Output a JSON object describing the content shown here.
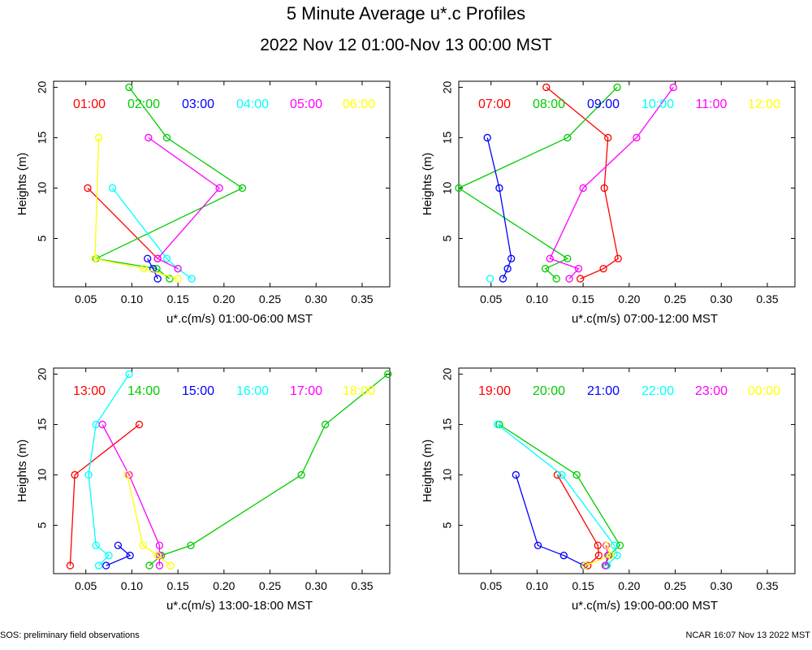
{
  "title": "5 Minute Average u*.c Profiles",
  "subtitle": "2022 Nov 12 01:00-Nov 13 00:00 MST",
  "footer_left": "SOS: preliminary field observations",
  "footer_right": "NCAR 16:07 Nov 13 2022 MST",
  "colors": [
    "#ff0000",
    "#00cc00",
    "#0000ff",
    "#00ffff",
    "#ff00ff",
    "#ffff00"
  ],
  "chart_data": [
    {
      "type": "line",
      "xlabel": "u*.c(m/s) 01:00-06:00 MST",
      "ylabel": "Heights (m)",
      "xlim": [
        0.015,
        0.38
      ],
      "ylim": [
        0.2,
        20.6
      ],
      "xticks": [
        "0.05",
        "0.10",
        "0.15",
        "0.20",
        "0.25",
        "0.30",
        "0.35"
      ],
      "yticks": [
        "5",
        "10",
        "15",
        "20"
      ],
      "series": [
        {
          "name": "01:00",
          "points": [
            [
              0.052,
              10
            ],
            [
              0.128,
              3
            ]
          ]
        },
        {
          "name": "02:00",
          "points": [
            [
              0.097,
              20
            ],
            [
              0.138,
              15
            ],
            [
              0.22,
              10
            ],
            [
              0.061,
              3
            ],
            [
              0.127,
              2
            ],
            [
              0.141,
              1
            ]
          ]
        },
        {
          "name": "03:00",
          "points": [
            [
              0.117,
              3
            ],
            [
              0.123,
              2
            ],
            [
              0.128,
              1
            ]
          ]
        },
        {
          "name": "04:00",
          "points": [
            [
              0.079,
              10
            ],
            [
              0.138,
              3
            ],
            [
              0.15,
              2
            ],
            [
              0.165,
              1
            ]
          ]
        },
        {
          "name": "05:00",
          "points": [
            [
              0.118,
              15
            ],
            [
              0.195,
              10
            ],
            [
              0.128,
              3
            ],
            [
              0.15,
              2
            ]
          ]
        },
        {
          "name": "06:00",
          "points": [
            [
              0.064,
              15
            ],
            [
              0.06,
              3
            ],
            [
              0.113,
              2
            ],
            [
              0.15,
              1
            ]
          ]
        }
      ]
    },
    {
      "type": "line",
      "xlabel": "u*.c(m/s) 07:00-12:00 MST",
      "ylabel": "Heights (m)",
      "xlim": [
        0.015,
        0.38
      ],
      "ylim": [
        0.2,
        20.6
      ],
      "xticks": [
        "0.05",
        "0.10",
        "0.15",
        "0.20",
        "0.25",
        "0.30",
        "0.35"
      ],
      "yticks": [
        "5",
        "10",
        "15",
        "20"
      ],
      "series": [
        {
          "name": "07:00",
          "points": [
            [
              0.11,
              20
            ],
            [
              0.177,
              15
            ],
            [
              0.173,
              10
            ],
            [
              0.188,
              3
            ],
            [
              0.172,
              2
            ],
            [
              0.147,
              1
            ]
          ]
        },
        {
          "name": "08:00",
          "points": [
            [
              0.187,
              20
            ],
            [
              0.133,
              15
            ],
            [
              0.015,
              10
            ],
            [
              0.133,
              3
            ],
            [
              0.109,
              2
            ],
            [
              0.121,
              1
            ]
          ]
        },
        {
          "name": "09:00",
          "points": [
            [
              0.046,
              15
            ],
            [
              0.059,
              10
            ],
            [
              0.072,
              3
            ],
            [
              0.068,
              2
            ],
            [
              0.063,
              1
            ]
          ]
        },
        {
          "name": "10:00",
          "points": [
            [
              0.049,
              1
            ]
          ]
        },
        {
          "name": "11:00",
          "points": [
            [
              0.248,
              20
            ],
            [
              0.208,
              15
            ],
            [
              0.15,
              10
            ],
            [
              0.114,
              3
            ],
            [
              0.145,
              2
            ],
            [
              0.135,
              1
            ]
          ]
        },
        {
          "name": "12:00",
          "points": []
        }
      ]
    },
    {
      "type": "line",
      "xlabel": "u*.c(m/s) 13:00-18:00 MST",
      "ylabel": "Heights (m)",
      "xlim": [
        0.015,
        0.38
      ],
      "ylim": [
        0.2,
        20.6
      ],
      "xticks": [
        "0.05",
        "0.10",
        "0.15",
        "0.20",
        "0.25",
        "0.30",
        "0.35"
      ],
      "yticks": [
        "5",
        "10",
        "15",
        "20"
      ],
      "series": [
        {
          "name": "13:00",
          "points": [
            [
              0.108,
              15
            ],
            [
              0.038,
              10
            ],
            [
              0.033,
              1
            ]
          ]
        },
        {
          "name": "14:00",
          "points": [
            [
              0.378,
              20
            ],
            [
              0.31,
              15
            ],
            [
              0.284,
              10
            ],
            [
              0.164,
              3
            ],
            [
              0.132,
              2
            ],
            [
              0.119,
              1
            ]
          ]
        },
        {
          "name": "15:00",
          "points": [
            [
              0.085,
              3
            ],
            [
              0.098,
              2
            ],
            [
              0.072,
              1
            ]
          ]
        },
        {
          "name": "16:00",
          "points": [
            [
              0.097,
              20
            ],
            [
              0.061,
              15
            ],
            [
              0.053,
              10
            ],
            [
              0.061,
              3
            ],
            [
              0.075,
              2
            ],
            [
              0.064,
              1
            ]
          ]
        },
        {
          "name": "17:00",
          "points": [
            [
              0.068,
              15
            ],
            [
              0.097,
              10
            ],
            [
              0.13,
              3
            ],
            [
              0.13,
              2
            ],
            [
              0.13,
              1
            ]
          ]
        },
        {
          "name": "18:00",
          "points": [
            [
              0.095,
              10
            ],
            [
              0.112,
              3
            ],
            [
              0.128,
              2
            ],
            [
              0.142,
              1
            ]
          ]
        }
      ]
    },
    {
      "type": "line",
      "xlabel": "u*.c(m/s) 19:00-00:00 MST",
      "ylabel": "Heights (m)",
      "xlim": [
        0.015,
        0.38
      ],
      "ylim": [
        0.2,
        20.6
      ],
      "xticks": [
        "0.05",
        "0.10",
        "0.15",
        "0.20",
        "0.25",
        "0.30",
        "0.35"
      ],
      "yticks": [
        "5",
        "10",
        "15",
        "20"
      ],
      "series": [
        {
          "name": "19:00",
          "points": [
            [
              0.122,
              10
            ],
            [
              0.166,
              3
            ],
            [
              0.167,
              2
            ],
            [
              0.155,
              1
            ]
          ]
        },
        {
          "name": "20:00",
          "points": [
            [
              0.059,
              15
            ],
            [
              0.143,
              10
            ],
            [
              0.19,
              3
            ],
            [
              0.178,
              2
            ],
            [
              0.175,
              1
            ]
          ]
        },
        {
          "name": "21:00",
          "points": [
            [
              0.077,
              10
            ],
            [
              0.101,
              3
            ],
            [
              0.129,
              2
            ],
            [
              0.151,
              1
            ]
          ]
        },
        {
          "name": "22:00",
          "points": [
            [
              0.057,
              15
            ],
            [
              0.127,
              10
            ],
            [
              0.184,
              3
            ],
            [
              0.187,
              2
            ],
            [
              0.176,
              1
            ]
          ]
        },
        {
          "name": "23:00",
          "points": [
            [
              0.175,
              3
            ],
            [
              0.177,
              2
            ],
            [
              0.174,
              1
            ]
          ]
        },
        {
          "name": "00:00",
          "points": [
            [
              0.176,
              3
            ],
            [
              0.18,
              2
            ],
            [
              0.152,
              1
            ]
          ]
        }
      ]
    }
  ]
}
